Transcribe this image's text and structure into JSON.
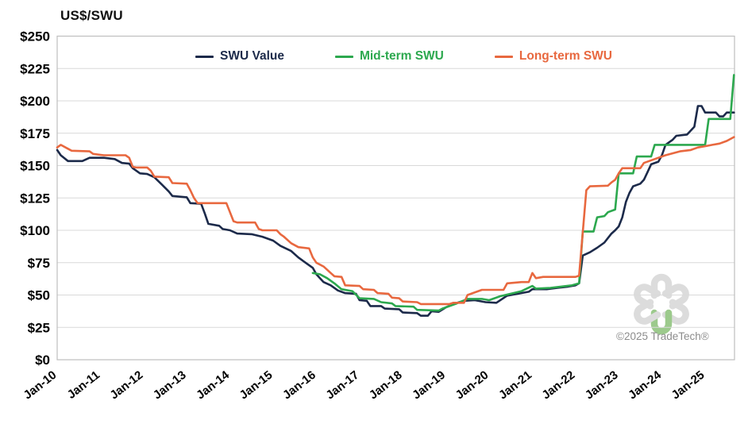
{
  "header": {
    "title": "US$/SWU"
  },
  "legend": {
    "items": [
      {
        "label": "SWU Value",
        "color": "#1c2a4a"
      },
      {
        "label": "Mid-term SWU",
        "color": "#2ca84e"
      },
      {
        "label": "Long-term SWU",
        "color": "#e8683f"
      }
    ]
  },
  "watermark": {
    "copyright": "©2025 TradeTech®",
    "logo": "tradetech-flower-logo",
    "logo_gray": "#dcdcdc",
    "logo_green": "#9cca8c"
  },
  "colors": {
    "swu_value": "#1c2a4a",
    "mid_term": "#2ca84e",
    "long_term": "#e8683f",
    "gridline": "#d9d9d9",
    "plot_border": "#bfbfbf",
    "axis_text": "#000000"
  },
  "chart_data": {
    "type": "line",
    "title": "US$/SWU",
    "ylabel": "US$/SWU",
    "xlabel": "",
    "ylim": [
      0,
      250
    ],
    "y_step": 25,
    "y_tick_labels": [
      "$250",
      "$225",
      "$200",
      "$175",
      "$150",
      "$125",
      "$100",
      "$75",
      "$50",
      "$25",
      "$0"
    ],
    "x_tick_labels": [
      "Jan-10",
      "Jan-11",
      "Jan-12",
      "Jan-13",
      "Jan-14",
      "Jan-15",
      "Jan-16",
      "Jan-17",
      "Jan-18",
      "Jan-19",
      "Jan-20",
      "Jan-21",
      "Jan-22",
      "Jan-23",
      "Jan-24",
      "Jan-25"
    ],
    "x_start": "2010-01",
    "x_end": "2025-10",
    "grid": "horizontal-only",
    "legend_position": "top-center-inside",
    "series": [
      {
        "name": "SWU Value",
        "color_key": "swu_value",
        "points": [
          [
            "2010-01",
            162
          ],
          [
            "2010-02",
            158
          ],
          [
            "2010-04",
            153.5
          ],
          [
            "2010-08",
            153.5
          ],
          [
            "2010-10",
            156
          ],
          [
            "2011-02",
            156
          ],
          [
            "2011-05",
            155
          ],
          [
            "2011-07",
            152
          ],
          [
            "2011-09",
            151.5
          ],
          [
            "2011-10",
            148
          ],
          [
            "2011-12",
            144
          ],
          [
            "2012-02",
            143.5
          ],
          [
            "2012-04",
            141
          ],
          [
            "2012-06",
            135.5
          ],
          [
            "2012-08",
            130
          ],
          [
            "2012-09",
            126.5
          ],
          [
            "2013-01",
            125.5
          ],
          [
            "2013-02",
            121
          ],
          [
            "2013-05",
            120.5
          ],
          [
            "2013-06",
            113
          ],
          [
            "2013-07",
            105
          ],
          [
            "2013-10",
            103.5
          ],
          [
            "2013-11",
            101
          ],
          [
            "2014-01",
            100
          ],
          [
            "2014-03",
            97.5
          ],
          [
            "2014-07",
            97
          ],
          [
            "2014-10",
            95
          ],
          [
            "2015-01",
            92
          ],
          [
            "2015-03",
            88
          ],
          [
            "2015-06",
            84
          ],
          [
            "2015-08",
            79
          ],
          [
            "2015-10",
            75
          ],
          [
            "2015-12",
            71
          ],
          [
            "2016-01",
            66
          ],
          [
            "2016-03",
            60
          ],
          [
            "2016-05",
            57.5
          ],
          [
            "2016-07",
            53.5
          ],
          [
            "2016-09",
            51.5
          ],
          [
            "2016-12",
            51
          ],
          [
            "2017-01",
            46
          ],
          [
            "2017-03",
            45.5
          ],
          [
            "2017-04",
            41.5
          ],
          [
            "2017-07",
            41.5
          ],
          [
            "2017-08",
            39.5
          ],
          [
            "2017-12",
            39
          ],
          [
            "2018-01",
            36.5
          ],
          [
            "2018-05",
            36
          ],
          [
            "2018-06",
            34
          ],
          [
            "2018-08",
            34
          ],
          [
            "2018-09",
            37.5
          ],
          [
            "2018-11",
            37
          ],
          [
            "2019-01",
            40.5
          ],
          [
            "2019-03",
            43
          ],
          [
            "2019-06",
            45.5
          ],
          [
            "2019-09",
            46
          ],
          [
            "2019-12",
            44.5
          ],
          [
            "2020-03",
            44
          ],
          [
            "2020-06",
            49.5
          ],
          [
            "2020-09",
            51
          ],
          [
            "2020-12",
            52.5
          ],
          [
            "2021-01",
            54.5
          ],
          [
            "2021-05",
            54.5
          ],
          [
            "2021-08",
            55.5
          ],
          [
            "2021-11",
            56.5
          ],
          [
            "2022-01",
            57.5
          ],
          [
            "2022-02",
            59
          ],
          [
            "2022-03",
            80.5
          ],
          [
            "2022-05",
            83
          ],
          [
            "2022-07",
            86.5
          ],
          [
            "2022-09",
            90.5
          ],
          [
            "2022-11",
            97.5
          ],
          [
            "2022-12",
            100
          ],
          [
            "2023-01",
            103
          ],
          [
            "2023-02",
            110
          ],
          [
            "2023-03",
            122
          ],
          [
            "2023-04",
            129
          ],
          [
            "2023-05",
            134
          ],
          [
            "2023-07",
            136
          ],
          [
            "2023-08",
            139
          ],
          [
            "2023-09",
            145
          ],
          [
            "2023-10",
            151
          ],
          [
            "2023-12",
            153
          ],
          [
            "2024-01",
            158
          ],
          [
            "2024-02",
            166
          ],
          [
            "2024-04",
            170
          ],
          [
            "2024-05",
            173
          ],
          [
            "2024-08",
            174
          ],
          [
            "2024-10",
            180
          ],
          [
            "2024-11",
            196
          ],
          [
            "2024-12",
            196
          ],
          [
            "2025-01",
            191
          ],
          [
            "2025-04",
            191
          ],
          [
            "2025-05",
            188
          ],
          [
            "2025-06",
            188
          ],
          [
            "2025-07",
            191
          ],
          [
            "2025-09",
            191
          ]
        ]
      },
      {
        "name": "Mid-term SWU",
        "color_key": "mid_term",
        "points": [
          [
            "2015-12",
            67
          ],
          [
            "2016-02",
            66
          ],
          [
            "2016-04",
            63
          ],
          [
            "2016-06",
            59
          ],
          [
            "2016-08",
            54.5
          ],
          [
            "2016-11",
            53
          ],
          [
            "2017-01",
            47.5
          ],
          [
            "2017-05",
            47
          ],
          [
            "2017-07",
            44.5
          ],
          [
            "2017-10",
            43.5
          ],
          [
            "2017-11",
            41.5
          ],
          [
            "2018-04",
            41
          ],
          [
            "2018-05",
            38.5
          ],
          [
            "2018-11",
            38
          ],
          [
            "2018-12",
            39.5
          ],
          [
            "2019-02",
            41.5
          ],
          [
            "2019-04",
            43.5
          ],
          [
            "2019-07",
            47
          ],
          [
            "2019-11",
            47
          ],
          [
            "2020-01",
            46
          ],
          [
            "2020-04",
            49
          ],
          [
            "2020-07",
            51
          ],
          [
            "2020-10",
            53
          ],
          [
            "2021-01",
            57
          ],
          [
            "2021-02",
            55
          ],
          [
            "2021-06",
            55.5
          ],
          [
            "2021-09",
            56.5
          ],
          [
            "2021-12",
            57.5
          ],
          [
            "2022-02",
            59
          ],
          [
            "2022-03",
            99
          ],
          [
            "2022-06",
            99
          ],
          [
            "2022-07",
            110
          ],
          [
            "2022-09",
            111
          ],
          [
            "2022-10",
            114
          ],
          [
            "2022-12",
            116
          ],
          [
            "2023-01",
            144
          ],
          [
            "2023-05",
            144
          ],
          [
            "2023-06",
            157
          ],
          [
            "2023-10",
            157
          ],
          [
            "2023-11",
            166
          ],
          [
            "2024-06",
            166
          ],
          [
            "2025-01",
            166
          ],
          [
            "2025-02",
            186
          ],
          [
            "2025-08",
            186
          ],
          [
            "2025-09",
            220
          ]
        ]
      },
      {
        "name": "Long-term SWU",
        "color_key": "long_term",
        "points": [
          [
            "2010-01",
            164
          ],
          [
            "2010-02",
            166
          ],
          [
            "2010-04",
            163
          ],
          [
            "2010-05",
            161.5
          ],
          [
            "2010-10",
            161
          ],
          [
            "2010-11",
            159
          ],
          [
            "2011-02",
            158
          ],
          [
            "2011-08",
            158
          ],
          [
            "2011-09",
            156
          ],
          [
            "2011-10",
            149
          ],
          [
            "2011-11",
            148.5
          ],
          [
            "2012-02",
            148.5
          ],
          [
            "2012-03",
            146
          ],
          [
            "2012-04",
            141.5
          ],
          [
            "2012-08",
            141
          ],
          [
            "2012-09",
            136.5
          ],
          [
            "2013-01",
            136
          ],
          [
            "2013-02",
            131
          ],
          [
            "2013-03",
            125
          ],
          [
            "2013-04",
            121
          ],
          [
            "2013-12",
            121
          ],
          [
            "2014-01",
            114
          ],
          [
            "2014-02",
            107
          ],
          [
            "2014-03",
            106
          ],
          [
            "2014-08",
            106
          ],
          [
            "2014-09",
            101
          ],
          [
            "2014-10",
            100
          ],
          [
            "2015-02",
            100
          ],
          [
            "2015-03",
            97
          ],
          [
            "2015-04",
            95
          ],
          [
            "2015-06",
            90
          ],
          [
            "2015-08",
            87
          ],
          [
            "2015-11",
            86
          ],
          [
            "2015-12",
            79
          ],
          [
            "2016-01",
            75
          ],
          [
            "2016-03",
            72
          ],
          [
            "2016-05",
            67
          ],
          [
            "2016-06",
            64.5
          ],
          [
            "2016-08",
            64
          ],
          [
            "2016-09",
            57.5
          ],
          [
            "2017-01",
            57
          ],
          [
            "2017-02",
            54.5
          ],
          [
            "2017-05",
            54
          ],
          [
            "2017-06",
            51.5
          ],
          [
            "2017-09",
            51
          ],
          [
            "2017-10",
            48
          ],
          [
            "2017-12",
            47.5
          ],
          [
            "2018-01",
            45
          ],
          [
            "2018-05",
            44.5
          ],
          [
            "2018-06",
            43
          ],
          [
            "2019-02",
            43
          ],
          [
            "2019-03",
            44
          ],
          [
            "2019-06",
            44
          ],
          [
            "2019-07",
            50
          ],
          [
            "2019-11",
            54
          ],
          [
            "2020-05",
            54
          ],
          [
            "2020-06",
            59
          ],
          [
            "2020-10",
            60
          ],
          [
            "2020-12",
            60
          ],
          [
            "2021-01",
            67
          ],
          [
            "2021-02",
            63
          ],
          [
            "2021-04",
            64
          ],
          [
            "2022-01",
            64
          ],
          [
            "2022-02",
            65
          ],
          [
            "2022-04",
            131
          ],
          [
            "2022-05",
            134
          ],
          [
            "2022-10",
            134.5
          ],
          [
            "2022-11",
            137
          ],
          [
            "2022-12",
            139
          ],
          [
            "2023-01",
            144
          ],
          [
            "2023-02",
            148
          ],
          [
            "2023-07",
            148
          ],
          [
            "2023-08",
            152
          ],
          [
            "2023-11",
            155
          ],
          [
            "2024-02",
            158
          ],
          [
            "2024-06",
            161
          ],
          [
            "2024-09",
            162
          ],
          [
            "2024-11",
            164
          ],
          [
            "2025-01",
            165
          ],
          [
            "2025-03",
            166
          ],
          [
            "2025-05",
            167
          ],
          [
            "2025-07",
            169
          ],
          [
            "2025-09",
            172
          ]
        ]
      }
    ]
  }
}
